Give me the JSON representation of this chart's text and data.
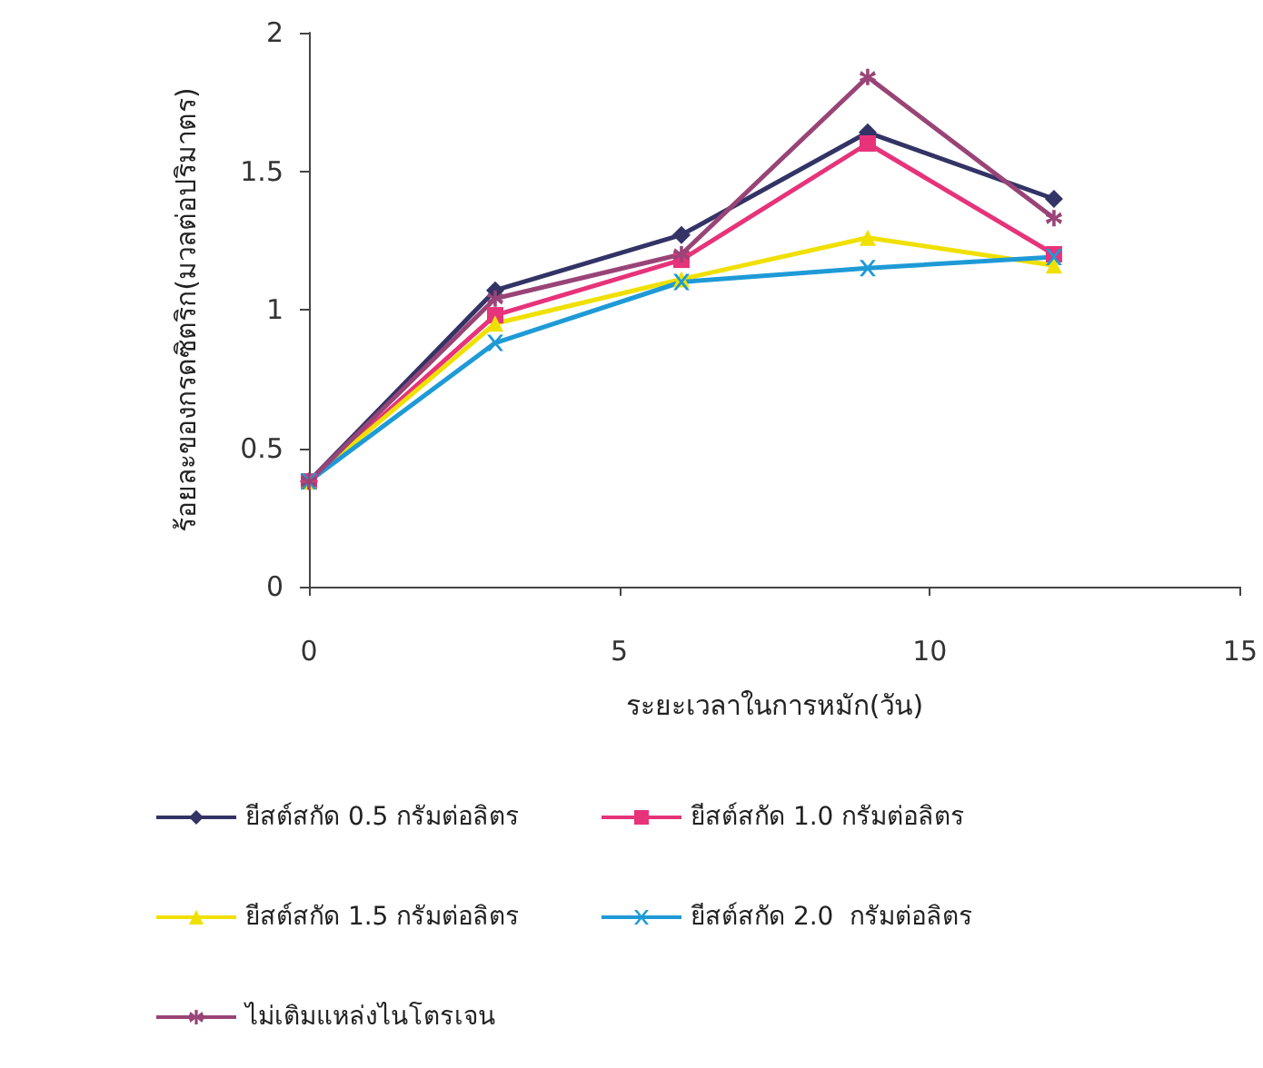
{
  "chart_data": {
    "type": "line",
    "xlabel": "ระยะเวลาในการหมัก(วัน)",
    "ylabel": "ร้อยละของกรดซิตริก(มวลต่อปริมาตร)",
    "x": [
      0,
      3,
      6,
      9,
      12
    ],
    "xlim": [
      0,
      15
    ],
    "xticks": [
      0,
      5,
      10,
      15
    ],
    "ylim": [
      0,
      2
    ],
    "yticks": [
      0,
      0.5,
      1,
      1.5,
      2
    ],
    "grid": false,
    "legend": "bottom",
    "line_style": "solid",
    "series": [
      {
        "name": "ยีสต์สกัด 0.5 กรัมต่อลิตร",
        "color": "#333366",
        "marker": "diamond",
        "values": [
          0.38,
          1.07,
          1.27,
          1.64,
          1.4
        ]
      },
      {
        "name": "ยีสต์สกัด 1.0 กรัมต่อลิตร",
        "color": "#e6337a",
        "marker": "square",
        "values": [
          0.38,
          0.98,
          1.18,
          1.6,
          1.2
        ]
      },
      {
        "name": "ยีสต์สกัด 1.5 กรัมต่อลิตร",
        "color": "#f0e000",
        "marker": "triangle",
        "values": [
          0.38,
          0.95,
          1.11,
          1.26,
          1.16
        ]
      },
      {
        "name": "ยีสต์สกัด 2.0  กรัมต่อลิตร",
        "color": "#1e9ad6",
        "marker": "cross",
        "values": [
          0.38,
          0.88,
          1.1,
          1.15,
          1.19
        ]
      },
      {
        "name": "ไม่เติมแหล่งไนโตรเจน",
        "color": "#994477",
        "marker": "star",
        "values": [
          0.38,
          1.04,
          1.2,
          1.84,
          1.33
        ]
      }
    ]
  }
}
